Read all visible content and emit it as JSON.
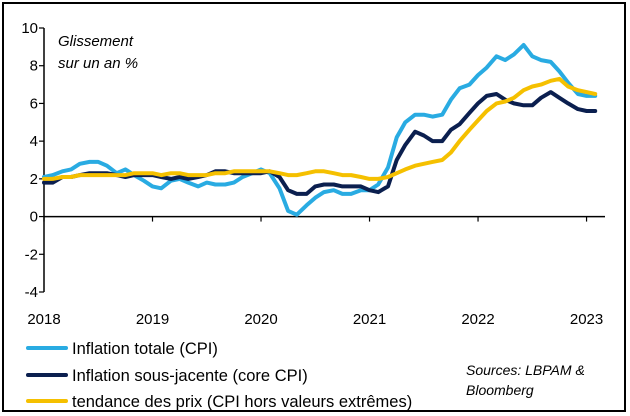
{
  "chart_data": {
    "type": "line",
    "annotation_lines": [
      "Glissement",
      "sur un an %"
    ],
    "y_ticks": [
      10,
      8,
      6,
      4,
      2,
      0,
      -2,
      -4
    ],
    "x_ticks": [
      "2018",
      "2019",
      "2020",
      "2021",
      "2022",
      "2023"
    ],
    "ylim": [
      -4,
      10
    ],
    "xlim": [
      2018.0,
      2023.17
    ],
    "grid": false,
    "legend_position": "bottom-left",
    "source_lines": [
      "Sources: LBPAM &",
      "Bloomberg"
    ],
    "series": [
      {
        "name": "Inflation totale (CPI)",
        "color": "#29abe2",
        "x": [
          2018.0,
          2018.08,
          2018.17,
          2018.25,
          2018.33,
          2018.42,
          2018.5,
          2018.58,
          2018.67,
          2018.75,
          2018.83,
          2018.92,
          2019.0,
          2019.08,
          2019.17,
          2019.25,
          2019.33,
          2019.42,
          2019.5,
          2019.58,
          2019.67,
          2019.75,
          2019.83,
          2019.92,
          2020.0,
          2020.08,
          2020.17,
          2020.25,
          2020.33,
          2020.42,
          2020.5,
          2020.58,
          2020.67,
          2020.75,
          2020.83,
          2020.92,
          2021.0,
          2021.08,
          2021.17,
          2021.25,
          2021.33,
          2021.42,
          2021.5,
          2021.58,
          2021.67,
          2021.75,
          2021.83,
          2021.92,
          2022.0,
          2022.08,
          2022.17,
          2022.25,
          2022.33,
          2022.42,
          2022.5,
          2022.58,
          2022.67,
          2022.75,
          2022.83,
          2022.92,
          2023.0,
          2023.08
        ],
        "values": [
          2.1,
          2.2,
          2.4,
          2.5,
          2.8,
          2.9,
          2.9,
          2.7,
          2.3,
          2.5,
          2.2,
          1.9,
          1.6,
          1.5,
          1.9,
          2.0,
          1.8,
          1.6,
          1.8,
          1.7,
          1.7,
          1.8,
          2.1,
          2.3,
          2.5,
          2.3,
          1.5,
          0.3,
          0.1,
          0.6,
          1.0,
          1.3,
          1.4,
          1.2,
          1.2,
          1.4,
          1.4,
          1.7,
          2.6,
          4.2,
          5.0,
          5.4,
          5.4,
          5.3,
          5.4,
          6.2,
          6.8,
          7.0,
          7.5,
          7.9,
          8.5,
          8.3,
          8.6,
          9.1,
          8.5,
          8.3,
          8.2,
          7.7,
          7.1,
          6.5,
          6.4,
          6.4
        ]
      },
      {
        "name": "Inflation sous-jacente (core CPI)",
        "color": "#0b1f4f",
        "x": [
          2018.0,
          2018.08,
          2018.17,
          2018.25,
          2018.33,
          2018.42,
          2018.5,
          2018.58,
          2018.67,
          2018.75,
          2018.83,
          2018.92,
          2019.0,
          2019.08,
          2019.17,
          2019.25,
          2019.33,
          2019.42,
          2019.5,
          2019.58,
          2019.67,
          2019.75,
          2019.83,
          2019.92,
          2020.0,
          2020.08,
          2020.17,
          2020.25,
          2020.33,
          2020.42,
          2020.5,
          2020.58,
          2020.67,
          2020.75,
          2020.83,
          2020.92,
          2021.0,
          2021.08,
          2021.17,
          2021.25,
          2021.33,
          2021.42,
          2021.5,
          2021.58,
          2021.67,
          2021.75,
          2021.83,
          2021.92,
          2022.0,
          2022.08,
          2022.17,
          2022.25,
          2022.33,
          2022.42,
          2022.5,
          2022.58,
          2022.67,
          2022.75,
          2022.83,
          2022.92,
          2023.0,
          2023.08
        ],
        "values": [
          1.8,
          1.8,
          2.1,
          2.1,
          2.2,
          2.3,
          2.3,
          2.3,
          2.2,
          2.1,
          2.2,
          2.2,
          2.2,
          2.1,
          2.0,
          2.1,
          2.0,
          2.1,
          2.2,
          2.4,
          2.4,
          2.3,
          2.3,
          2.3,
          2.3,
          2.4,
          2.1,
          1.4,
          1.2,
          1.2,
          1.6,
          1.7,
          1.7,
          1.6,
          1.6,
          1.6,
          1.4,
          1.3,
          1.6,
          3.0,
          3.8,
          4.5,
          4.3,
          4.0,
          4.0,
          4.6,
          4.9,
          5.5,
          6.0,
          6.4,
          6.5,
          6.2,
          6.0,
          5.9,
          5.9,
          6.3,
          6.6,
          6.3,
          6.0,
          5.7,
          5.6,
          5.6
        ]
      },
      {
        "name": "tendance des prix (CPI hors valeurs extrêmes)",
        "color": "#f5c000",
        "x": [
          2018.0,
          2018.08,
          2018.17,
          2018.25,
          2018.33,
          2018.42,
          2018.5,
          2018.58,
          2018.67,
          2018.75,
          2018.83,
          2018.92,
          2019.0,
          2019.08,
          2019.17,
          2019.25,
          2019.33,
          2019.42,
          2019.5,
          2019.58,
          2019.67,
          2019.75,
          2019.83,
          2019.92,
          2020.0,
          2020.08,
          2020.17,
          2020.25,
          2020.33,
          2020.42,
          2020.5,
          2020.58,
          2020.67,
          2020.75,
          2020.83,
          2020.92,
          2021.0,
          2021.08,
          2021.17,
          2021.25,
          2021.33,
          2021.42,
          2021.5,
          2021.58,
          2021.67,
          2021.75,
          2021.83,
          2021.92,
          2022.0,
          2022.08,
          2022.17,
          2022.25,
          2022.33,
          2022.42,
          2022.5,
          2022.58,
          2022.67,
          2022.75,
          2022.83,
          2022.92,
          2023.0,
          2023.08
        ],
        "values": [
          2.0,
          2.0,
          2.1,
          2.1,
          2.2,
          2.2,
          2.2,
          2.2,
          2.2,
          2.2,
          2.3,
          2.3,
          2.3,
          2.2,
          2.3,
          2.3,
          2.2,
          2.2,
          2.2,
          2.3,
          2.3,
          2.4,
          2.4,
          2.4,
          2.4,
          2.4,
          2.3,
          2.2,
          2.2,
          2.3,
          2.4,
          2.4,
          2.3,
          2.2,
          2.2,
          2.1,
          2.0,
          2.0,
          2.1,
          2.3,
          2.5,
          2.7,
          2.8,
          2.9,
          3.0,
          3.4,
          4.0,
          4.6,
          5.1,
          5.6,
          6.0,
          6.1,
          6.3,
          6.7,
          6.9,
          7.0,
          7.2,
          7.3,
          6.9,
          6.7,
          6.6,
          6.5
        ]
      }
    ]
  }
}
